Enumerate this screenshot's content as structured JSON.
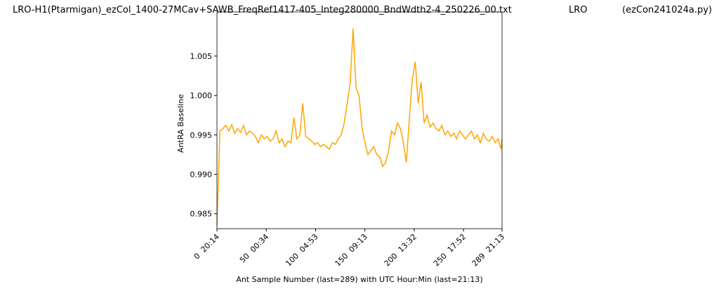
{
  "chart_data": {
    "type": "line",
    "title": "LRO-H1(Ptarmigan)_ezCol_1400-27MCav+SAWB_FreqRef1417-405_Integ280000_BndWdth2-4_250226_00.txt",
    "title_center": "LRO",
    "title_right": "(ezCon241024a.py)",
    "xlabel": "Ant Sample Number (last=289) with UTC Hour:Min (last=21:13)",
    "ylabel": "AntRA Baseline",
    "xlim": [
      0,
      289
    ],
    "ylim": [
      0.9831,
      1.0106
    ],
    "xticks": [
      {
        "value": 0,
        "label": "0  20:14"
      },
      {
        "value": 50,
        "label": "50  00:34"
      },
      {
        "value": 100,
        "label": "100  04:53"
      },
      {
        "value": 150,
        "label": "150  09:13"
      },
      {
        "value": 200,
        "label": "200  13:32"
      },
      {
        "value": 250,
        "label": "250  17:52"
      },
      {
        "value": 289,
        "label": "289  21:13"
      }
    ],
    "yticks": [
      0.985,
      {
        "value": 0.99,
        "label": "0.990"
      },
      0.995,
      {
        "value": 1,
        "label": "1.000"
      },
      1.005
    ],
    "x": [
      0,
      3,
      6,
      9,
      12,
      15,
      18,
      21,
      24,
      27,
      30,
      33,
      36,
      39,
      42,
      45,
      48,
      51,
      54,
      57,
      60,
      63,
      66,
      69,
      72,
      75,
      78,
      81,
      84,
      87,
      90,
      93,
      96,
      99,
      102,
      105,
      108,
      111,
      114,
      117,
      120,
      123,
      126,
      129,
      132,
      135,
      138,
      141,
      144,
      147,
      150,
      153,
      156,
      159,
      162,
      165,
      168,
      171,
      174,
      177,
      180,
      183,
      186,
      189,
      192,
      195,
      198,
      201,
      204,
      207,
      210,
      213,
      216,
      219,
      222,
      225,
      228,
      231,
      234,
      237,
      240,
      243,
      246,
      249,
      252,
      255,
      258,
      261,
      264,
      267,
      270,
      273,
      276,
      279,
      282,
      285,
      288,
      289
    ],
    "series": [
      {
        "color": "#ffa500",
        "values": [
          0.9835,
          0.9955,
          0.9958,
          0.9962,
          0.9955,
          0.9963,
          0.9952,
          0.9958,
          0.9953,
          0.9962,
          0.995,
          0.9955,
          0.9952,
          0.9948,
          0.994,
          0.995,
          0.9945,
          0.9948,
          0.9942,
          0.9945,
          0.9955,
          0.994,
          0.9945,
          0.9935,
          0.9942,
          0.994,
          0.9972,
          0.9945,
          0.995,
          0.999,
          0.9948,
          0.9945,
          0.9942,
          0.9938,
          0.994,
          0.9935,
          0.9938,
          0.9935,
          0.9932,
          0.994,
          0.9938,
          0.9945,
          0.995,
          0.9965,
          0.999,
          1.0015,
          1.0085,
          1.001,
          1.0,
          0.996,
          0.994,
          0.9925,
          0.993,
          0.9935,
          0.9925,
          0.9922,
          0.991,
          0.9915,
          0.993,
          0.9955,
          0.995,
          0.9965,
          0.9958,
          0.994,
          0.9915,
          0.997,
          1.002,
          1.0043,
          0.999,
          1.0017,
          0.9965,
          0.9975,
          0.996,
          0.9965,
          0.9958,
          0.9955,
          0.9962,
          0.995,
          0.9955,
          0.9948,
          0.9952,
          0.9945,
          0.9955,
          0.995,
          0.9945,
          0.995,
          0.9955,
          0.9945,
          0.995,
          0.994,
          0.9952,
          0.9945,
          0.9942,
          0.9948,
          0.994,
          0.9945,
          0.9932,
          0.9945
        ]
      }
    ]
  }
}
